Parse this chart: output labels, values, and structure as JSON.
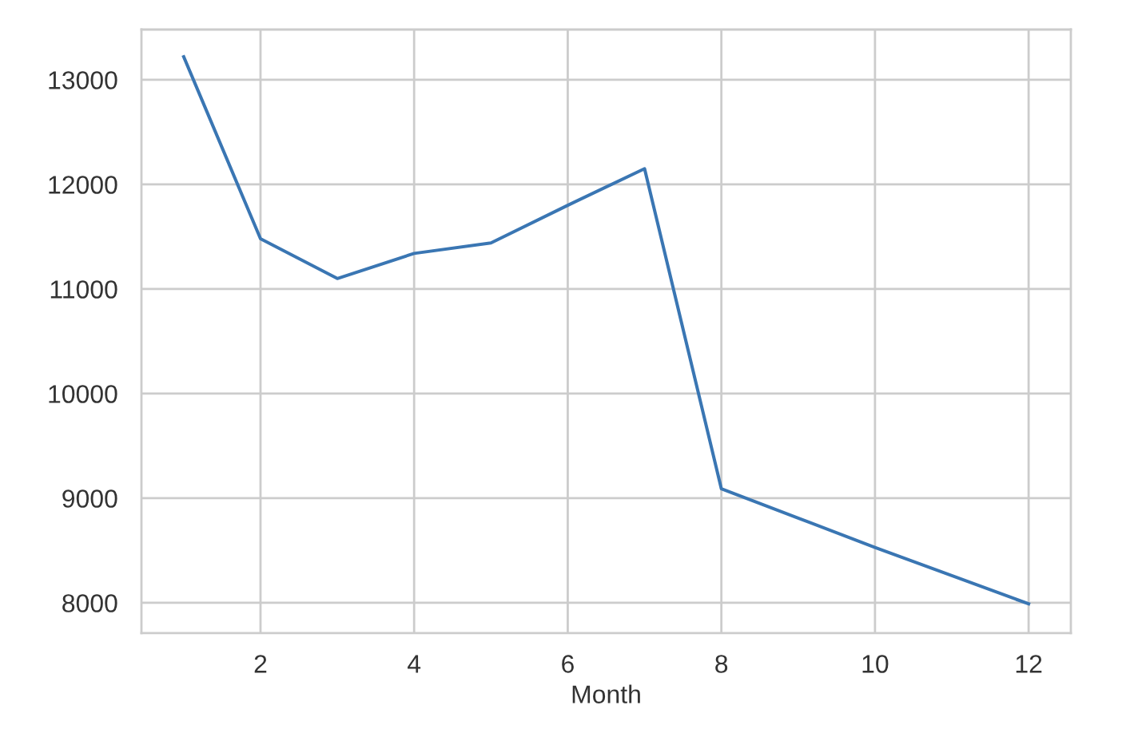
{
  "chart_data": {
    "type": "line",
    "xlabel": "Month",
    "x": [
      1,
      2,
      3,
      4,
      5,
      6,
      7,
      8,
      9,
      10,
      11,
      12
    ],
    "series": [
      {
        "color": "#3a76b3",
        "values": [
          13220,
          11480,
          11100,
          11340,
          11440,
          11800,
          12150,
          9090,
          8810,
          8530,
          8260,
          7990
        ]
      }
    ],
    "xlim": [
      0.45,
      12.55
    ],
    "xticks": [
      2,
      4,
      6,
      8,
      10,
      12
    ],
    "ylim": [
      7710,
      13480
    ],
    "yticks": [
      8000,
      9000,
      10000,
      11000,
      12000,
      13000
    ],
    "grid": true,
    "line_style": "solid"
  }
}
